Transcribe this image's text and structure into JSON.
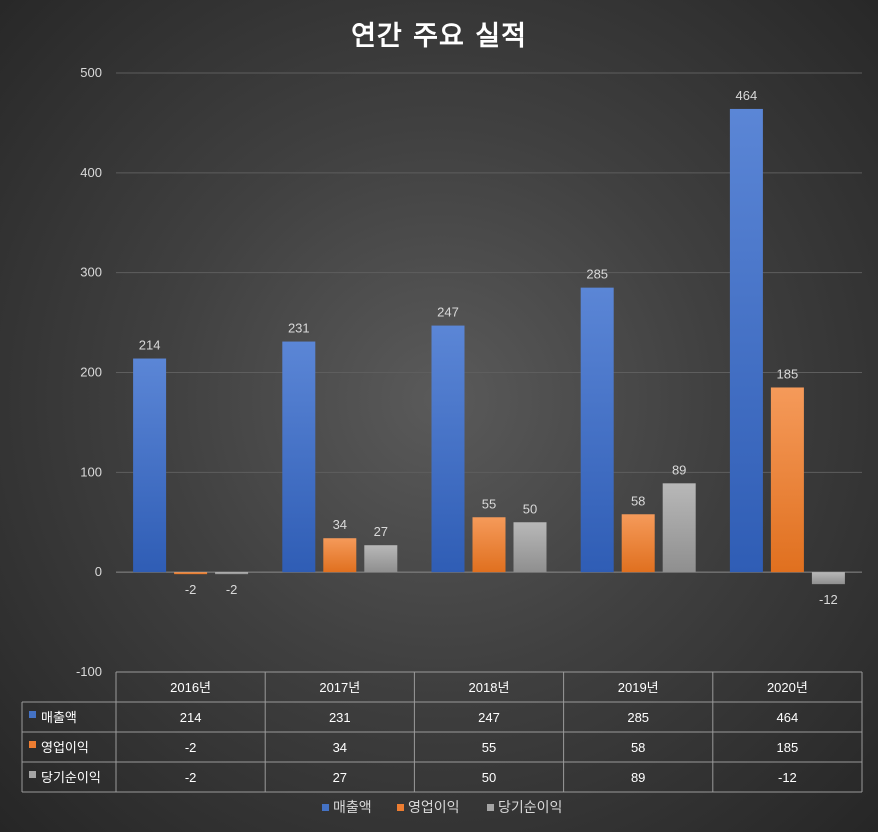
{
  "chart_data": {
    "type": "bar",
    "title": "연간 주요 실적",
    "categories": [
      "2016년",
      "2017년",
      "2018년",
      "2019년",
      "2020년"
    ],
    "series": [
      {
        "name": "매출액",
        "values": [
          214,
          231,
          247,
          285,
          464
        ],
        "color": "#4472c4"
      },
      {
        "name": "영업이익",
        "values": [
          -2,
          34,
          55,
          58,
          185
        ],
        "color": "#ed7d31"
      },
      {
        "name": "당기순이익",
        "values": [
          -2,
          27,
          50,
          89,
          -12
        ],
        "color": "#a5a5a5"
      }
    ],
    "ylim": [
      -100,
      500
    ],
    "yticks": [
      -100,
      0,
      100,
      200,
      300,
      400,
      500
    ],
    "grid": true,
    "legend": "bottom",
    "data_table": true
  }
}
